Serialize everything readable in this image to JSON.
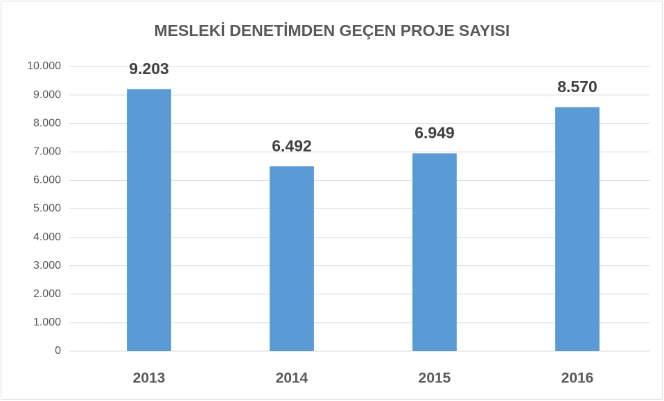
{
  "chart_data": {
    "type": "bar",
    "title": "MESLEKİ DENETİMDEN GEÇEN PROJE SAYISI",
    "categories": [
      "2013",
      "2014",
      "2015",
      "2016"
    ],
    "values": [
      9203,
      6492,
      6949,
      8570
    ],
    "value_labels": [
      "9.203",
      "6.492",
      "6.949",
      "8.570"
    ],
    "color": "#5b9bd5",
    "ylim": [
      0,
      10000
    ],
    "yticks": [
      0,
      {
        "value": 1000,
        "label": "1.000"
      },
      {
        "value": 2000,
        "label": "2.000"
      },
      {
        "value": 3000,
        "label": "3.000"
      },
      {
        "value": 4000,
        "label": "4.000"
      },
      {
        "value": 5000,
        "label": "5.000"
      },
      {
        "value": 6000,
        "label": "6.000"
      },
      {
        "value": 7000,
        "label": "7.000"
      },
      {
        "value": 8000,
        "label": "8.000"
      },
      {
        "value": 9000,
        "label": "9.000"
      },
      {
        "value": 10000,
        "label": "10.000"
      }
    ],
    "grid": true
  }
}
